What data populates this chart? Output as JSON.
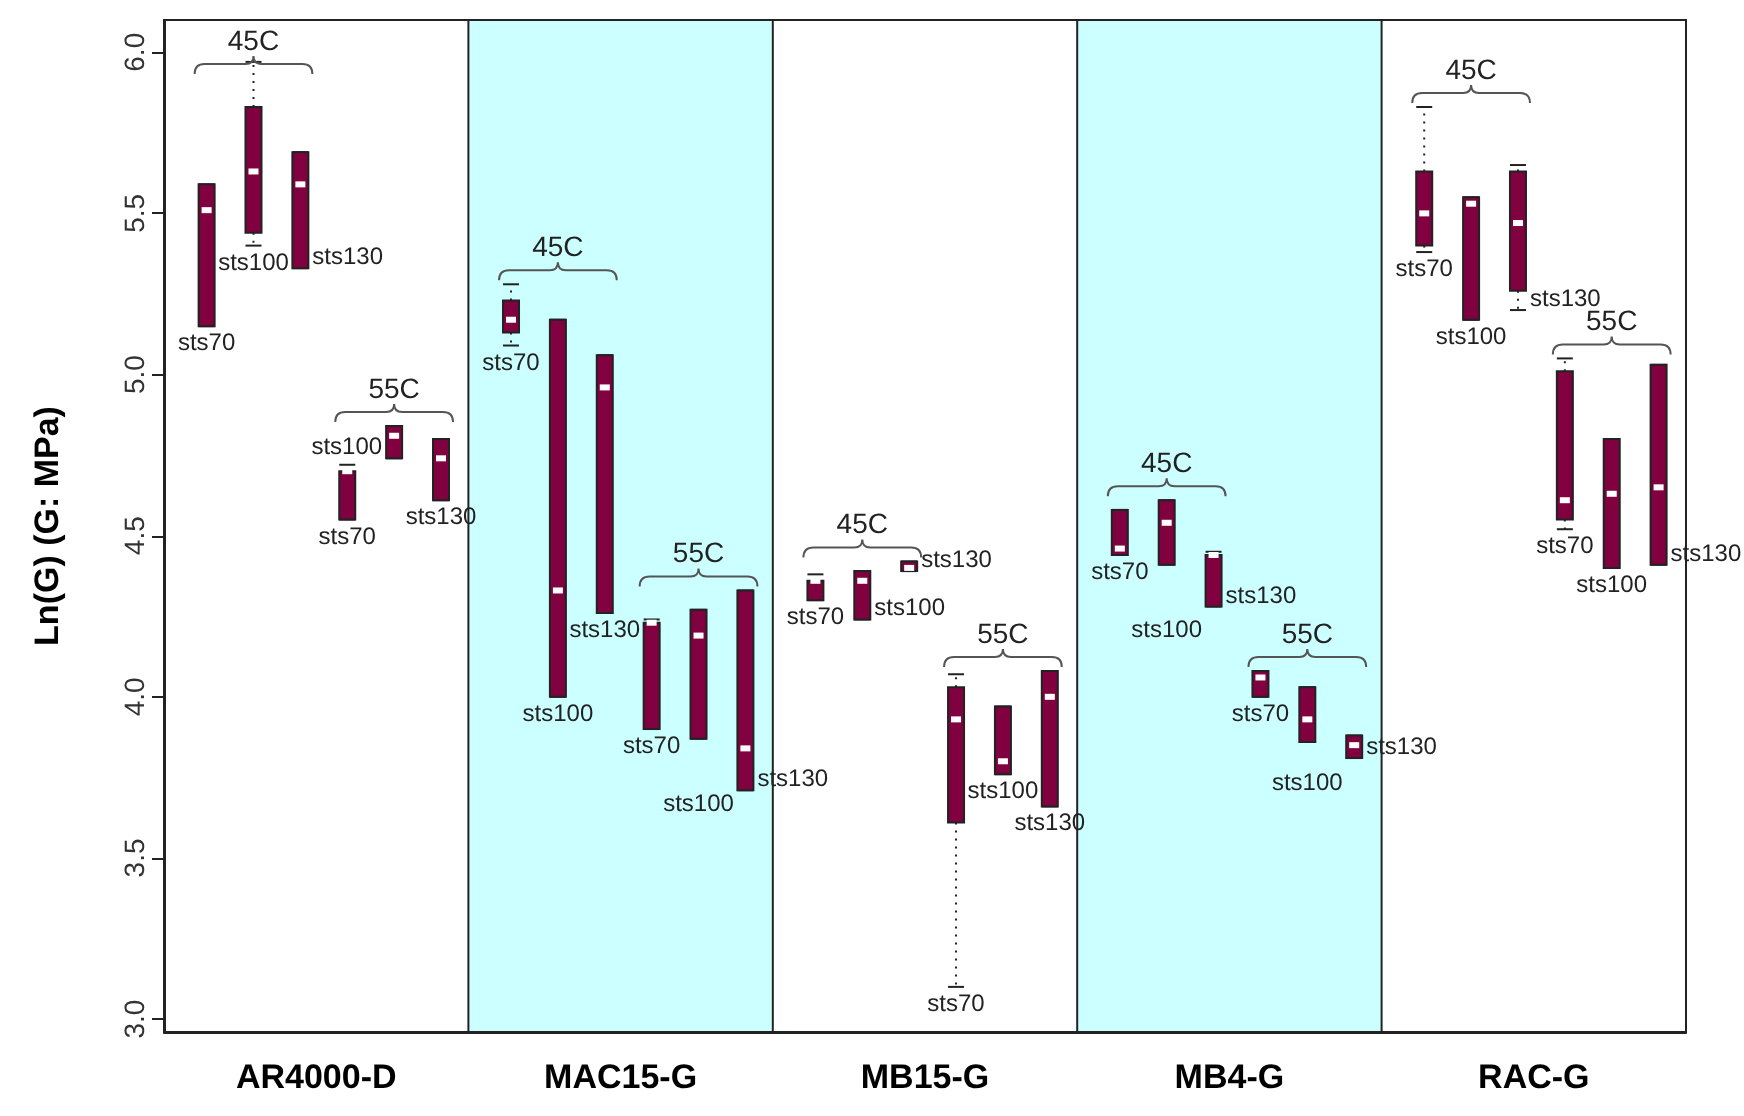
{
  "chart_data": {
    "type": "box",
    "ylabel": "Ln(G) (G: MPa)",
    "categories": [
      "AR4000-D",
      "MAC15-G",
      "MB15-G",
      "MB4-G",
      "RAC-G"
    ],
    "ylim": [
      2.96,
      6.1
    ],
    "yticks": [
      {
        "value": 3,
        "label": "3.0"
      },
      {
        "value": 3.5,
        "label": "3.5"
      },
      {
        "value": 4,
        "label": "4.0"
      },
      {
        "value": 4.5,
        "label": "4.5"
      },
      {
        "value": 5,
        "label": "5.0"
      },
      {
        "value": 5.5,
        "label": "5.5"
      },
      {
        "value": 6,
        "label": "6.0"
      }
    ],
    "series": [
      {
        "name": "sts70",
        "color": "#800040",
        "boxes": [
          {
            "low": 5.15,
            "q1": 5.15,
            "median": 5.51,
            "q3": 5.59,
            "high": 5.59
          },
          {
            "low": 5.09,
            "q1": 5.13,
            "median": 5.17,
            "q3": 5.23,
            "high": 5.28
          },
          {
            "low": 4.3,
            "q1": 4.3,
            "median": 4.36,
            "q3": 4.36,
            "high": 4.38
          },
          {
            "low": 4.44,
            "q1": 4.44,
            "median": 4.46,
            "q3": 4.58,
            "high": 4.58
          },
          {
            "low": 5.38,
            "q1": 5.4,
            "median": 5.5,
            "q3": 5.63,
            "high": 5.83
          }
        ]
      },
      {
        "name": "sts100",
        "color": "#800040",
        "boxes": [
          {
            "low": 5.4,
            "q1": 5.44,
            "median": 5.63,
            "q3": 5.83,
            "high": 5.97
          },
          {
            "low": 4.0,
            "q1": 4.0,
            "median": 4.33,
            "q3": 5.17,
            "high": 5.17
          },
          {
            "low": 4.24,
            "q1": 4.24,
            "median": 4.36,
            "q3": 4.39,
            "high": 4.39
          },
          {
            "low": 4.41,
            "q1": 4.41,
            "median": 4.54,
            "q3": 4.61,
            "high": 4.61
          },
          {
            "low": 5.17,
            "q1": 5.17,
            "median": 5.53,
            "q3": 5.55,
            "high": 5.55
          }
        ]
      },
      {
        "name": "sts130",
        "color": "#800040",
        "boxes": [
          {
            "low": 5.33,
            "q1": 5.33,
            "median": 5.59,
            "q3": 5.69,
            "high": 5.69
          },
          {
            "low": 4.26,
            "q1": 4.26,
            "median": 4.96,
            "q3": 5.06,
            "high": 5.06
          },
          {
            "low": 4.39,
            "q1": 4.39,
            "median": 4.4,
            "q3": 4.42,
            "high": 4.42
          },
          {
            "low": 4.28,
            "q1": 4.28,
            "median": 4.44,
            "q3": 4.44,
            "high": 4.45
          },
          {
            "low": 5.2,
            "q1": 5.26,
            "median": 5.47,
            "q3": 5.63,
            "high": 5.65
          }
        ]
      },
      {
        "name": "sts70",
        "color": "#800040",
        "boxes": [
          {
            "low": 4.55,
            "q1": 4.55,
            "median": 4.7,
            "q3": 4.7,
            "high": 4.72
          },
          {
            "low": 3.9,
            "q1": 3.9,
            "median": 4.23,
            "q3": 4.23,
            "high": 4.24
          },
          {
            "low": 3.1,
            "q1": 3.61,
            "median": 3.93,
            "q3": 4.03,
            "high": 4.07
          },
          {
            "low": 4.0,
            "q1": 4.0,
            "median": 4.06,
            "q3": 4.08,
            "high": 4.08
          },
          {
            "low": 4.52,
            "q1": 4.55,
            "median": 4.61,
            "q3": 5.01,
            "high": 5.05
          }
        ]
      },
      {
        "name": "sts100",
        "color": "#800040",
        "boxes": [
          {
            "low": 4.74,
            "q1": 4.74,
            "median": 4.81,
            "q3": 4.84,
            "high": 4.84
          },
          {
            "low": 3.87,
            "q1": 3.87,
            "median": 4.19,
            "q3": 4.27,
            "high": 4.27
          },
          {
            "low": 3.76,
            "q1": 3.76,
            "median": 3.8,
            "q3": 3.97,
            "high": 3.97
          },
          {
            "low": 3.86,
            "q1": 3.86,
            "median": 3.93,
            "q3": 4.03,
            "high": 4.03
          },
          {
            "low": 4.4,
            "q1": 4.4,
            "median": 4.63,
            "q3": 4.8,
            "high": 4.8
          }
        ]
      },
      {
        "name": "sts130",
        "color": "#800040",
        "boxes": [
          {
            "low": 4.61,
            "q1": 4.61,
            "median": 4.74,
            "q3": 4.8,
            "high": 4.8
          },
          {
            "low": 3.71,
            "q1": 3.71,
            "median": 3.84,
            "q3": 4.33,
            "high": 4.33
          },
          {
            "low": 3.66,
            "q1": 3.66,
            "median": 4.0,
            "q3": 4.08,
            "high": 4.08
          },
          {
            "low": 3.81,
            "q1": 3.81,
            "median": 3.85,
            "q3": 3.88,
            "high": 3.88
          },
          {
            "low": 4.41,
            "q1": 4.41,
            "median": 4.65,
            "q3": 5.03,
            "high": 5.03
          }
        ]
      }
    ],
    "bands": [
      {
        "axis": "x",
        "from": "MAC15-G",
        "to": "MAC15-G",
        "color": "#ccffff"
      },
      {
        "axis": "x",
        "from": "MB4-G",
        "to": "MB4-G",
        "color": "#ccffff"
      }
    ],
    "annotations": [
      "45C",
      "55C",
      "45C",
      "55C",
      "45C",
      "55C",
      "45C",
      "55C",
      "45C",
      "55C"
    ]
  }
}
